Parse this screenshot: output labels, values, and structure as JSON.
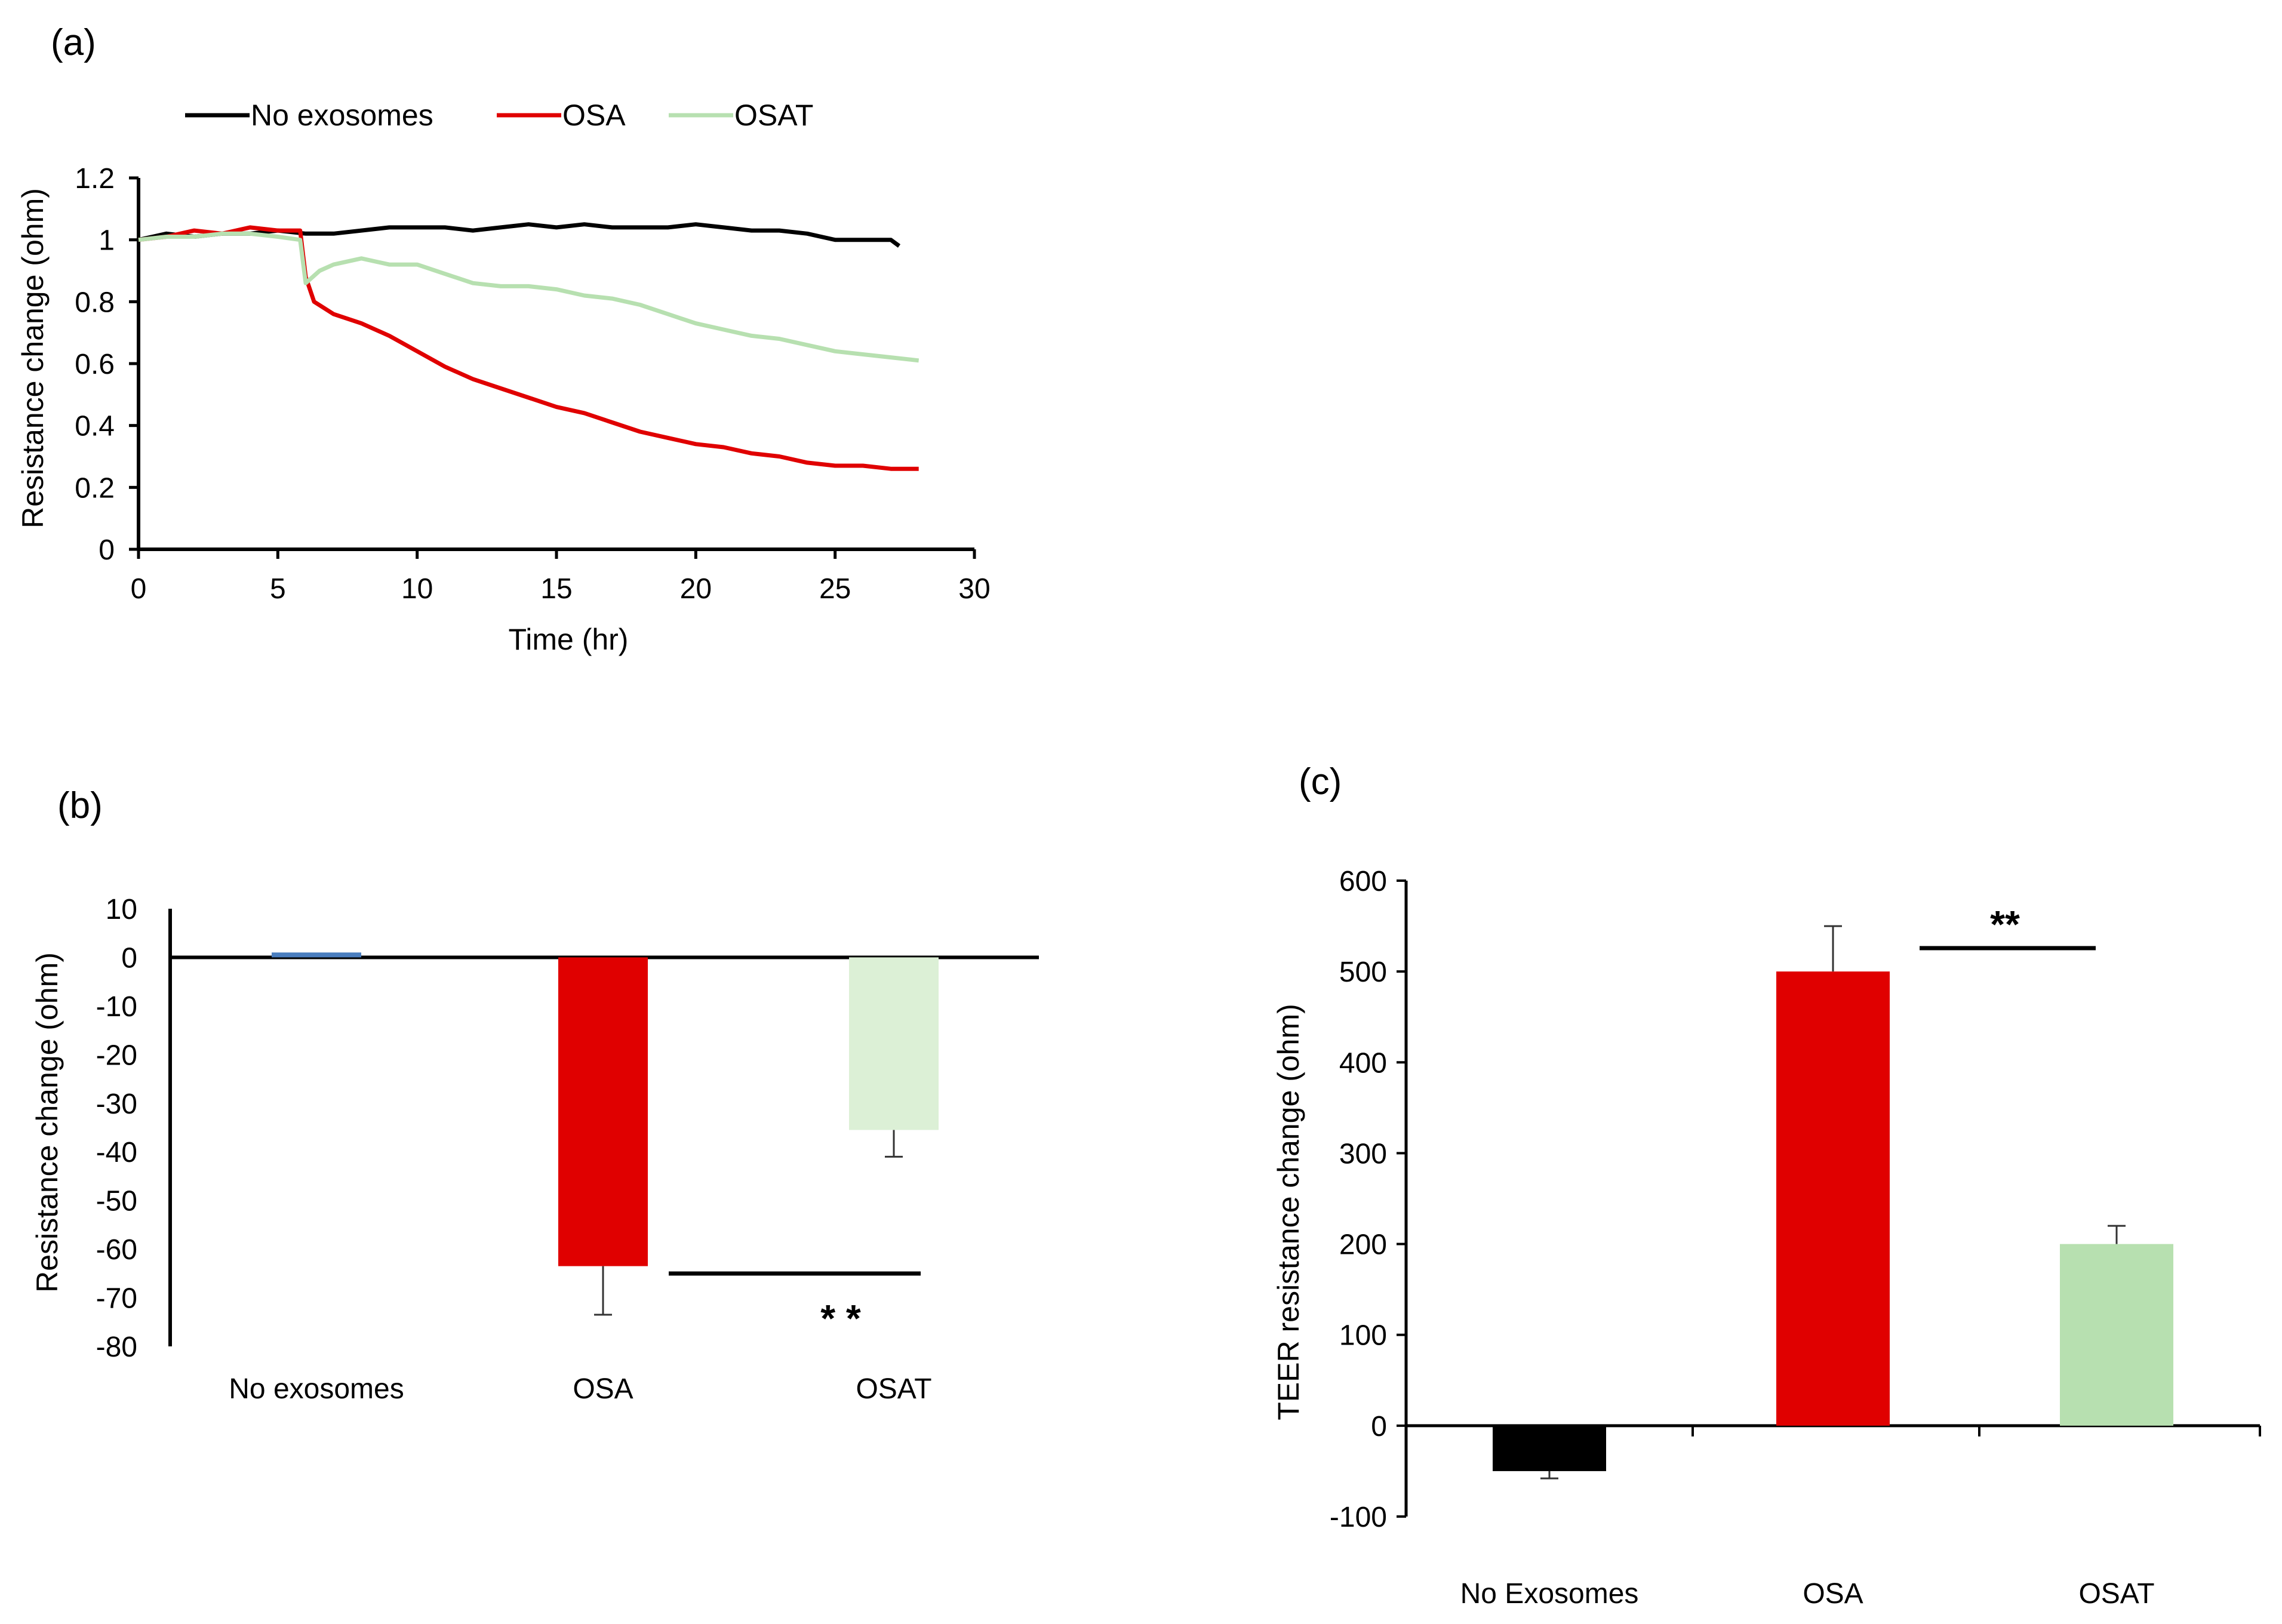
{
  "colors": {
    "no_exosomes": "#000000",
    "osa": "#e00000",
    "osat": "#b7e0b0",
    "osat_b": "#dcf0d6",
    "axis": "#000000",
    "b_no_exosomes": "#4a7ebf"
  },
  "chart_data": [
    {
      "panel": "(a)",
      "type": "line",
      "xlabel": "Time (hr)",
      "ylabel": "Resistance change (ohm)",
      "xlim": [
        0,
        30
      ],
      "ylim": [
        0,
        1.2
      ],
      "xticks": [
        "0",
        "5",
        "10",
        "15",
        "20",
        "25",
        "30"
      ],
      "yticks": [
        "0",
        "0.2",
        "0.4",
        "0.6",
        "0.8",
        "1",
        "1.2"
      ],
      "legend_position": "top",
      "grid": false,
      "series": [
        {
          "name": "No exosomes",
          "color": "#000000",
          "points": [
            [
              0,
              1.0
            ],
            [
              1,
              1.02
            ],
            [
              2,
              1.01
            ],
            [
              3,
              1.02
            ],
            [
              4,
              1.02
            ],
            [
              5,
              1.03
            ],
            [
              6,
              1.02
            ],
            [
              7,
              1.02
            ],
            [
              8,
              1.03
            ],
            [
              9,
              1.04
            ],
            [
              10,
              1.04
            ],
            [
              11,
              1.04
            ],
            [
              12,
              1.03
            ],
            [
              13,
              1.04
            ],
            [
              14,
              1.05
            ],
            [
              15,
              1.04
            ],
            [
              16,
              1.05
            ],
            [
              17,
              1.04
            ],
            [
              18,
              1.04
            ],
            [
              19,
              1.04
            ],
            [
              20,
              1.05
            ],
            [
              21,
              1.04
            ],
            [
              22,
              1.03
            ],
            [
              23,
              1.03
            ],
            [
              24,
              1.02
            ],
            [
              25,
              1.0
            ],
            [
              26,
              1.0
            ],
            [
              27,
              1.0
            ],
            [
              27.3,
              0.98
            ]
          ]
        },
        {
          "name": "OSA",
          "color": "#e00000",
          "points": [
            [
              0,
              1.0
            ],
            [
              1,
              1.01
            ],
            [
              2,
              1.03
            ],
            [
              3,
              1.02
            ],
            [
              4,
              1.04
            ],
            [
              5,
              1.03
            ],
            [
              5.8,
              1.03
            ],
            [
              6.0,
              0.88
            ],
            [
              6.3,
              0.8
            ],
            [
              7,
              0.76
            ],
            [
              8,
              0.73
            ],
            [
              9,
              0.69
            ],
            [
              10,
              0.64
            ],
            [
              11,
              0.59
            ],
            [
              12,
              0.55
            ],
            [
              13,
              0.52
            ],
            [
              14,
              0.49
            ],
            [
              15,
              0.46
            ],
            [
              16,
              0.44
            ],
            [
              17,
              0.41
            ],
            [
              18,
              0.38
            ],
            [
              19,
              0.36
            ],
            [
              20,
              0.34
            ],
            [
              21,
              0.33
            ],
            [
              22,
              0.31
            ],
            [
              23,
              0.3
            ],
            [
              24,
              0.28
            ],
            [
              25,
              0.27
            ],
            [
              26,
              0.27
            ],
            [
              27,
              0.26
            ],
            [
              28,
              0.26
            ]
          ]
        },
        {
          "name": "OSAT",
          "color": "#b7e0b0",
          "points": [
            [
              0,
              1.0
            ],
            [
              1,
              1.01
            ],
            [
              2,
              1.01
            ],
            [
              3,
              1.02
            ],
            [
              4,
              1.02
            ],
            [
              5,
              1.01
            ],
            [
              5.8,
              1.0
            ],
            [
              6.0,
              0.86
            ],
            [
              6.5,
              0.9
            ],
            [
              7,
              0.92
            ],
            [
              8,
              0.94
            ],
            [
              9,
              0.92
            ],
            [
              10,
              0.92
            ],
            [
              11,
              0.89
            ],
            [
              12,
              0.86
            ],
            [
              13,
              0.85
            ],
            [
              14,
              0.85
            ],
            [
              15,
              0.84
            ],
            [
              16,
              0.82
            ],
            [
              17,
              0.81
            ],
            [
              18,
              0.79
            ],
            [
              19,
              0.76
            ],
            [
              20,
              0.73
            ],
            [
              21,
              0.71
            ],
            [
              22,
              0.69
            ],
            [
              23,
              0.68
            ],
            [
              24,
              0.66
            ],
            [
              25,
              0.64
            ],
            [
              26,
              0.63
            ],
            [
              27,
              0.62
            ],
            [
              28,
              0.61
            ]
          ]
        }
      ]
    },
    {
      "panel": "(b)",
      "type": "bar",
      "xlabel": "",
      "ylabel": "Resistance change (ohm)",
      "ylim": [
        -80,
        10
      ],
      "yticks": [
        "10",
        "0",
        "-10",
        "-20",
        "-30",
        "-40",
        "-50",
        "-60",
        "-70",
        "-80"
      ],
      "categories": [
        "No exosomes",
        "OSA",
        "OSAT"
      ],
      "values": [
        1,
        -63.5,
        -35.5
      ],
      "errors": [
        0,
        10,
        5.5
      ],
      "significance": {
        "label": "* *",
        "between": [
          "OSA",
          "OSAT"
        ]
      }
    },
    {
      "panel": "(c)",
      "type": "bar",
      "xlabel": "",
      "ylabel": "TEER resistance change (ohm)",
      "ylim": [
        -100,
        600
      ],
      "yticks": [
        "600",
        "500",
        "400",
        "300",
        "200",
        "100",
        "0",
        "-100"
      ],
      "categories": [
        "No Exosomes",
        "OSA",
        "OSAT"
      ],
      "values": [
        -50,
        500,
        200
      ],
      "errors": [
        8,
        50,
        20
      ],
      "significance": {
        "label": "**",
        "between": [
          "OSA",
          "OSAT"
        ]
      }
    }
  ]
}
